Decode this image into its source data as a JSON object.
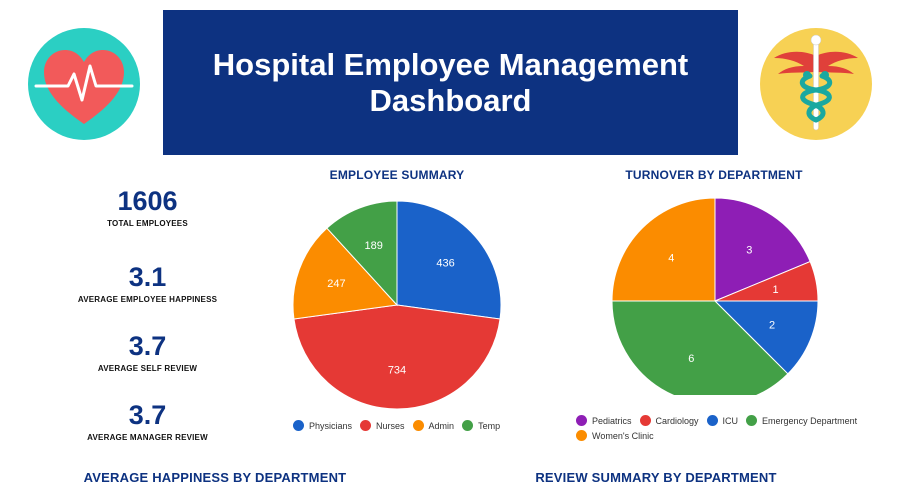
{
  "header": {
    "title": "Hospital Employee Management Dashboard"
  },
  "icons": {
    "left": "heart-rate-icon",
    "right": "caduceus-icon"
  },
  "kpis": [
    {
      "value": "1606",
      "label": "TOTAL EMPLOYEES"
    },
    {
      "value": "3.1",
      "label": "AVERAGE EMPLOYEE HAPPINESS"
    },
    {
      "value": "3.7",
      "label": "AVERAGE SELF REVIEW"
    },
    {
      "value": "3.7",
      "label": "AVERAGE MANAGER REVIEW"
    }
  ],
  "section_titles": {
    "employee_summary": "EMPLOYEE SUMMARY",
    "turnover": "TURNOVER BY DEPARTMENT",
    "happiness": "AVERAGE HAPPINESS BY DEPARTMENT",
    "review": "REVIEW SUMMARY BY DEPARTMENT"
  },
  "colors": {
    "brand": "#0d3281",
    "icon_left_bg": "#2bcfc3",
    "icon_right_bg": "#f7d154"
  },
  "chart_data": [
    {
      "type": "pie",
      "title": "EMPLOYEE SUMMARY",
      "categories": [
        "Physicians",
        "Nurses",
        "Admin",
        "Temp"
      ],
      "values": [
        436,
        734,
        247,
        189
      ],
      "colors": [
        "#1a62c9",
        "#e53935",
        "#fb8c00",
        "#43a047"
      ],
      "legend": "bottom"
    },
    {
      "type": "pie",
      "title": "TURNOVER BY DEPARTMENT",
      "categories": [
        "Pediatrics",
        "Cardiology",
        "ICU",
        "Emergency Department",
        "Women's Clinic"
      ],
      "values": [
        3,
        1,
        2,
        6,
        4
      ],
      "colors": [
        "#8e1eb5",
        "#e53935",
        "#1a62c9",
        "#43a047",
        "#fb8c00"
      ],
      "legend": "bottom"
    }
  ]
}
